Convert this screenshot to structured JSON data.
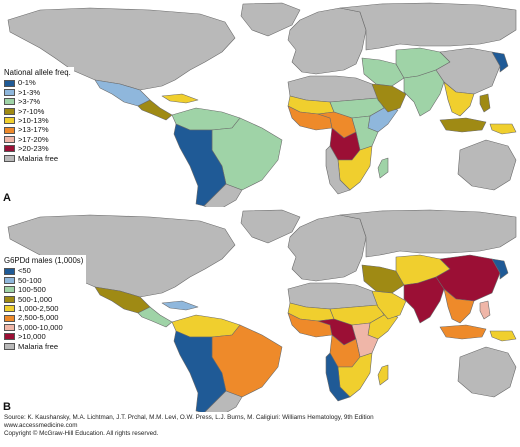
{
  "panels": [
    {
      "letter": "A",
      "legend_title": "National allele freq.",
      "legend": [
        {
          "label": "0-1%",
          "color": "#1f5a96"
        },
        {
          "label": ">1-3%",
          "color": "#8fb7dc"
        },
        {
          "label": ">3-7%",
          "color": "#9fd3a7"
        },
        {
          "label": ">7-10%",
          "color": "#9f8a14"
        },
        {
          "label": ">10-13%",
          "color": "#f0cf2e"
        },
        {
          "label": ">13-17%",
          "color": "#ee8a2a"
        },
        {
          "label": ">17-20%",
          "color": "#efb6a8"
        },
        {
          "label": ">20-23%",
          "color": "#9b0f35"
        },
        {
          "label": "Malaria free",
          "color": "#b9b9b9"
        }
      ],
      "region_colors": {
        "north_america": "#b9b9b9",
        "greenland": "#b9b9b9",
        "mexico": "#8fb7dc",
        "central_america": "#9f8a14",
        "caribbean": "#f0cf2e",
        "south_america_north": "#9fd3a7",
        "brazil": "#9fd3a7",
        "andes": "#1f5a96",
        "southern_cone": "#b9b9b9",
        "europe": "#b9b9b9",
        "russia": "#b9b9b9",
        "north_africa": "#b9b9b9",
        "sahel_west": "#f0cf2e",
        "sahel_east": "#9fd3a7",
        "west_africa": "#ee8a2a",
        "central_africa": "#ee8a2a",
        "congo": "#9b0f35",
        "east_africa": "#9fd3a7",
        "horn": "#8fb7dc",
        "southern_africa_east": "#f0cf2e",
        "southern_africa_west": "#b9b9b9",
        "madagascar": "#9fd3a7",
        "middle_east": "#9fd3a7",
        "arabia": "#9f8a14",
        "central_asia": "#9fd3a7",
        "south_asia": "#9fd3a7",
        "china": "#b9b9b9",
        "korea": "#1f5a96",
        "southeast_asia": "#f0cf2e",
        "indonesia": "#9f8a14",
        "philippines": "#9f8a14",
        "new_guinea": "#f0cf2e",
        "australia": "#b9b9b9"
      }
    },
    {
      "letter": "B",
      "legend_title": "G6PDd males (1,000s)",
      "legend": [
        {
          "label": "<50",
          "color": "#1f5a96"
        },
        {
          "label": "50-100",
          "color": "#8fb7dc"
        },
        {
          "label": "100-500",
          "color": "#9fd3a7"
        },
        {
          "label": "500-1,000",
          "color": "#9f8a14"
        },
        {
          "label": "1,000-2,500",
          "color": "#f0cf2e"
        },
        {
          "label": "2,500-5,000",
          "color": "#ee8a2a"
        },
        {
          "label": "5,000-10,000",
          "color": "#efb6a8"
        },
        {
          "label": ">10,000",
          "color": "#9b0f35"
        },
        {
          "label": "Malaria free",
          "color": "#b9b9b9"
        }
      ],
      "region_colors": {
        "north_america": "#b9b9b9",
        "greenland": "#b9b9b9",
        "mexico": "#9f8a14",
        "central_america": "#9fd3a7",
        "caribbean": "#8fb7dc",
        "south_america_north": "#f0cf2e",
        "brazil": "#ee8a2a",
        "andes": "#1f5a96",
        "southern_cone": "#b9b9b9",
        "europe": "#b9b9b9",
        "russia": "#b9b9b9",
        "north_africa": "#b9b9b9",
        "sahel_west": "#f0cf2e",
        "sahel_east": "#f0cf2e",
        "west_africa": "#ee8a2a",
        "central_africa": "#9b0f35",
        "congo": "#ee8a2a",
        "east_africa": "#efb6a8",
        "horn": "#f0cf2e",
        "southern_africa_east": "#f0cf2e",
        "southern_africa_west": "#1f5a96",
        "madagascar": "#f0cf2e",
        "middle_east": "#9f8a14",
        "arabia": "#f0cf2e",
        "central_asia": "#f0cf2e",
        "south_asia": "#9b0f35",
        "china": "#9b0f35",
        "korea": "#1f5a96",
        "southeast_asia": "#ee8a2a",
        "indonesia": "#ee8a2a",
        "philippines": "#efb6a8",
        "new_guinea": "#f0cf2e",
        "australia": "#b9b9b9"
      }
    }
  ],
  "source": {
    "line1": "Source: K. Kaushansky, M.A. Lichtman, J.T. Prchal, M.M. Levi, O.W. Press, L.J. Burns, M. Caligiuri: Williams Hematology, 9th Edition",
    "line2": "www.accessmedicine.com",
    "line3": "Copyright © McGraw-Hill Education.  All rights reserved."
  }
}
